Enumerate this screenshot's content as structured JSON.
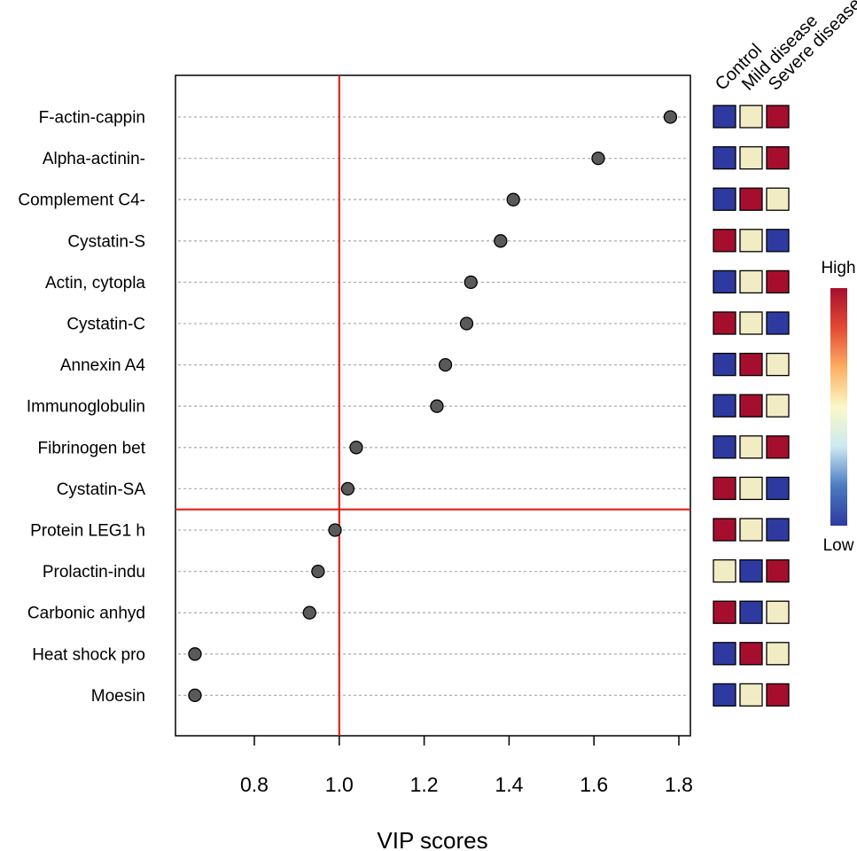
{
  "chart_data": {
    "type": "scatter",
    "title": "",
    "xlabel": "VIP scores",
    "ylabel": "",
    "xlim": [
      0.62,
      1.83
    ],
    "xticks": [
      "0.8",
      "1.0",
      "1.2",
      "1.4",
      "1.6",
      "1.8"
    ],
    "xtick_values": [
      0.8,
      1.0,
      1.2,
      1.4,
      1.6,
      1.8
    ],
    "vline": 1.0,
    "hline_between": [
      "Cystatin-SA",
      "Protein LEG1 h"
    ],
    "categories": [
      "F-actin-cappin",
      "Alpha-actinin-",
      "Complement C4-",
      "Cystatin-S",
      "Actin, cytopla",
      "Cystatin-C",
      "Annexin A4",
      "Immunoglobulin",
      "Fibrinogen bet",
      "Cystatin-SA",
      "Protein LEG1 h",
      "Prolactin-indu",
      "Carbonic anhyd",
      "Heat shock pro",
      "Moesin"
    ],
    "values": [
      1.78,
      1.61,
      1.41,
      1.38,
      1.31,
      1.3,
      1.25,
      1.23,
      1.04,
      1.02,
      0.99,
      0.95,
      0.93,
      0.66,
      0.66
    ],
    "heatmap": {
      "columns": [
        "Control",
        "Mild disease",
        "Severe disease"
      ],
      "levels": {
        "low": "#2e3a9f",
        "mid": "#f2ecc4",
        "high": "#a50f2d"
      },
      "rows": [
        [
          "low",
          "mid",
          "high"
        ],
        [
          "low",
          "mid",
          "high"
        ],
        [
          "low",
          "high",
          "mid"
        ],
        [
          "high",
          "mid",
          "low"
        ],
        [
          "low",
          "mid",
          "high"
        ],
        [
          "high",
          "mid",
          "low"
        ],
        [
          "low",
          "high",
          "mid"
        ],
        [
          "low",
          "high",
          "mid"
        ],
        [
          "low",
          "mid",
          "high"
        ],
        [
          "high",
          "mid",
          "low"
        ],
        [
          "high",
          "mid",
          "low"
        ],
        [
          "mid",
          "low",
          "high"
        ],
        [
          "high",
          "low",
          "mid"
        ],
        [
          "low",
          "high",
          "mid"
        ],
        [
          "low",
          "mid",
          "high"
        ]
      ]
    },
    "legend": {
      "high": "High",
      "low": "Low"
    },
    "colors": {
      "point_fill": "#5a5a5a",
      "reference_line": "#e0201b",
      "gridline": "#b0b0b0",
      "gradient": [
        "#2e3a9f",
        "#4a7bc0",
        "#cde9f2",
        "#fbf8c6",
        "#fdae61",
        "#e34a33",
        "#a50f2d"
      ]
    }
  }
}
